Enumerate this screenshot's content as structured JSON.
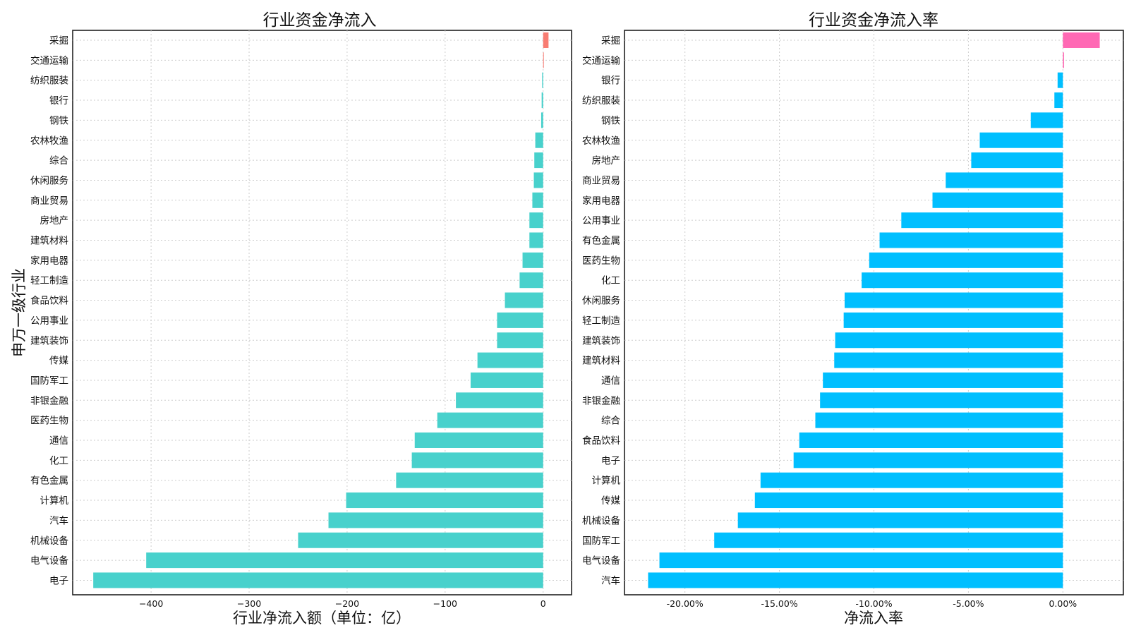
{
  "figure": {
    "left_ylabel": "申万一级行业"
  },
  "chart_data": [
    {
      "type": "bar",
      "orientation": "horizontal",
      "title": "行业资金净流入",
      "xlabel": "行业净流入额（单位：亿）",
      "ylabel": "申万一级行业",
      "categories": [
        "采掘",
        "交通运输",
        "纺织服装",
        "银行",
        "钢铁",
        "农林牧渔",
        "综合",
        "休闲服务",
        "商业贸易",
        "房地产",
        "建筑材料",
        "家用电器",
        "轻工制造",
        "食品饮料",
        "公用事业",
        "建筑装饰",
        "传媒",
        "国防军工",
        "非银金融",
        "医药生物",
        "通信",
        "化工",
        "有色金属",
        "计算机",
        "汽车",
        "机械设备",
        "电气设备",
        "电子"
      ],
      "values": [
        5.5,
        0.3,
        -1,
        -1.5,
        -2,
        -8,
        -9,
        -9.5,
        -11,
        -14,
        -14,
        -21,
        -24,
        -39,
        -47,
        -47,
        -67,
        -74,
        -89,
        -108,
        -131,
        -134,
        -150,
        -201,
        -219,
        -250,
        -405,
        -459
      ],
      "xlim": [
        -480,
        29
      ],
      "xticks": [
        -400,
        -300,
        -200,
        -100,
        0
      ],
      "xtick_labels": [
        "−400",
        "−300",
        "−200",
        "−100",
        "0"
      ],
      "grid": true,
      "colors": {
        "positive": "#F87C72",
        "negative": "#48D1CC"
      }
    },
    {
      "type": "bar",
      "orientation": "horizontal",
      "title": "行业资金净流入率",
      "xlabel": "净流入率",
      "categories": [
        "采掘",
        "交通运输",
        "银行",
        "纺织服装",
        "钢铁",
        "农林牧渔",
        "房地产",
        "商业贸易",
        "家用电器",
        "公用事业",
        "有色金属",
        "医药生物",
        "化工",
        "休闲服务",
        "轻工制造",
        "建筑装饰",
        "建筑材料",
        "通信",
        "非银金融",
        "综合",
        "食品饮料",
        "电子",
        "计算机",
        "传媒",
        "机械设备",
        "国防军工",
        "电气设备",
        "汽车"
      ],
      "values": [
        1.95,
        0.06,
        -0.28,
        -0.45,
        -1.7,
        -4.4,
        -4.85,
        -6.2,
        -6.9,
        -8.55,
        -9.7,
        -10.25,
        -10.65,
        -11.55,
        -11.6,
        -12.05,
        -12.1,
        -12.7,
        -12.85,
        -13.1,
        -13.95,
        -14.25,
        -16.0,
        -16.3,
        -17.2,
        -18.45,
        -21.35,
        -21.95
      ],
      "value_unit": "%",
      "xlim": [
        -23.2,
        3.2
      ],
      "xticks": [
        -20,
        -15,
        -10,
        -5,
        0
      ],
      "xtick_labels": [
        "-20.00%",
        "-15.00%",
        "-10.00%",
        "-5.00%",
        "0.00%"
      ],
      "grid": true,
      "colors": {
        "positive": "#FF69B4",
        "negative": "#00BFFF"
      }
    }
  ]
}
